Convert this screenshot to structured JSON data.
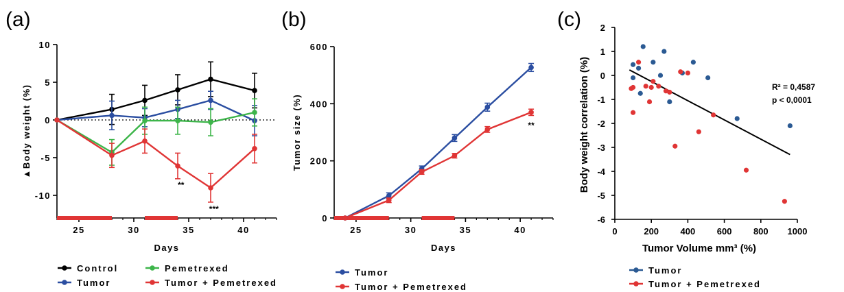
{
  "panels": {
    "a": "(a)",
    "b": "(b)",
    "c": "(c)"
  },
  "chart_data": [
    {
      "type": "line",
      "panel": "(a)",
      "xlabel": "Days",
      "ylabel": "▲Body weight (%)",
      "xlim": [
        23,
        43
      ],
      "ylim": [
        -13,
        10
      ],
      "xticks": [
        25,
        30,
        35,
        40
      ],
      "yticks": [
        10,
        5,
        0,
        -5,
        -10
      ],
      "zero_line": "dotted",
      "treatment_bars": [
        [
          23,
          28
        ],
        [
          31,
          34
        ]
      ],
      "treatment_color": "#e03535",
      "series": [
        {
          "name": "Control",
          "color": "#000000",
          "x": [
            23,
            28,
            31,
            34,
            37,
            41
          ],
          "y": [
            0,
            1.4,
            2.6,
            4.0,
            5.4,
            3.9
          ],
          "err": [
            0,
            2.0,
            2.0,
            2.0,
            2.3,
            2.3
          ]
        },
        {
          "name": "Tumor",
          "color": "#2b4ea1",
          "x": [
            23,
            28,
            31,
            34,
            37,
            41
          ],
          "y": [
            0,
            0.6,
            0.3,
            1.4,
            2.6,
            -0.1
          ],
          "err": [
            0,
            1.9,
            1.2,
            1.2,
            1.2,
            2.0
          ]
        },
        {
          "name": "Pemetrexed",
          "color": "#3db54a",
          "x": [
            23,
            28,
            31,
            34,
            37,
            41
          ],
          "y": [
            0,
            -4.3,
            -0.1,
            -0.1,
            -0.3,
            1.0
          ],
          "err": [
            0,
            1.7,
            1.8,
            1.8,
            1.8,
            1.8
          ]
        },
        {
          "name": "Tumor + Pemetrexed",
          "color": "#e03535",
          "x": [
            23,
            28,
            31,
            34,
            37,
            41
          ],
          "y": [
            0,
            -4.7,
            -2.8,
            -6.1,
            -9.0,
            -3.8
          ],
          "err": [
            0,
            1.6,
            1.6,
            1.7,
            1.9,
            1.9
          ]
        }
      ],
      "annotations": [
        {
          "text": "**",
          "x": 34.3,
          "y": -9.0
        },
        {
          "text": "***",
          "x": 37.3,
          "y": -12.2
        }
      ],
      "legend": [
        "Control",
        "Pemetrexed",
        "Tumor",
        "Tumor + Pemetrexed"
      ]
    },
    {
      "type": "line",
      "panel": "(b)",
      "xlabel": "Days",
      "ylabel": "Tumor size (%)",
      "xlim": [
        23,
        43
      ],
      "ylim": [
        0,
        600
      ],
      "xticks": [
        25,
        30,
        35,
        40
      ],
      "yticks": [
        0,
        200,
        400,
        600
      ],
      "treatment_bars": [
        [
          23,
          28
        ],
        [
          31,
          34
        ]
      ],
      "treatment_color": "#e03535",
      "series": [
        {
          "name": "Tumor",
          "color": "#2b4ea1",
          "x": [
            24,
            28,
            31,
            34,
            37,
            41
          ],
          "y": [
            0,
            78,
            172,
            280,
            388,
            527
          ],
          "err": [
            0,
            10,
            10,
            12,
            14,
            14
          ]
        },
        {
          "name": "Tumor + Pemetrexed",
          "color": "#e03535",
          "x": [
            24,
            28,
            31,
            34,
            37,
            41
          ],
          "y": [
            0,
            62,
            161,
            218,
            310,
            370
          ],
          "err": [
            0,
            8,
            8,
            8,
            10,
            11
          ]
        }
      ],
      "annotations": [
        {
          "text": "**",
          "x": 41,
          "y": 315
        }
      ],
      "legend": [
        "Tumor",
        "Tumor + Pemetrexed"
      ]
    },
    {
      "type": "scatter",
      "panel": "(c)",
      "xlabel": "Tumor  Volume mm³ (%)",
      "ylabel": "Body weight correlation (%)",
      "xlim": [
        0,
        1000
      ],
      "ylim": [
        -6,
        2
      ],
      "xticks": [
        0,
        200,
        400,
        600,
        800,
        1000
      ],
      "yticks": [
        2,
        1,
        0,
        -1,
        -2,
        -3,
        -4,
        -5,
        -6
      ],
      "regression": {
        "x": [
          80,
          960
        ],
        "y": [
          0.23,
          -3.3
        ],
        "color": "#000000"
      },
      "stats": [
        "R² = 0,4587",
        "p < 0,0001"
      ],
      "series": [
        {
          "name": "Tumor",
          "color": "#2b5a93",
          "x": [
            100,
            100,
            130,
            140,
            155,
            210,
            250,
            270,
            300,
            370,
            430,
            510,
            670,
            960
          ],
          "y": [
            0.45,
            -0.1,
            0.3,
            -0.75,
            1.2,
            0.55,
            0.0,
            1.0,
            -1.1,
            0.1,
            0.55,
            -0.1,
            -1.8,
            -2.1
          ]
        },
        {
          "name": "Tumor + Pemetrexed",
          "color": "#e03535",
          "x": [
            90,
            100,
            100,
            130,
            170,
            190,
            200,
            210,
            240,
            280,
            300,
            330,
            360,
            400,
            460,
            540,
            720,
            930
          ],
          "y": [
            -0.55,
            -0.5,
            -1.55,
            0.55,
            -0.45,
            -1.1,
            -0.5,
            -0.25,
            -0.45,
            -0.65,
            -0.7,
            -2.95,
            0.15,
            0.1,
            -2.35,
            -1.65,
            -3.95,
            -5.25
          ]
        }
      ],
      "legend": [
        "Tumor",
        "Tumor + Pemetrexed"
      ]
    }
  ]
}
